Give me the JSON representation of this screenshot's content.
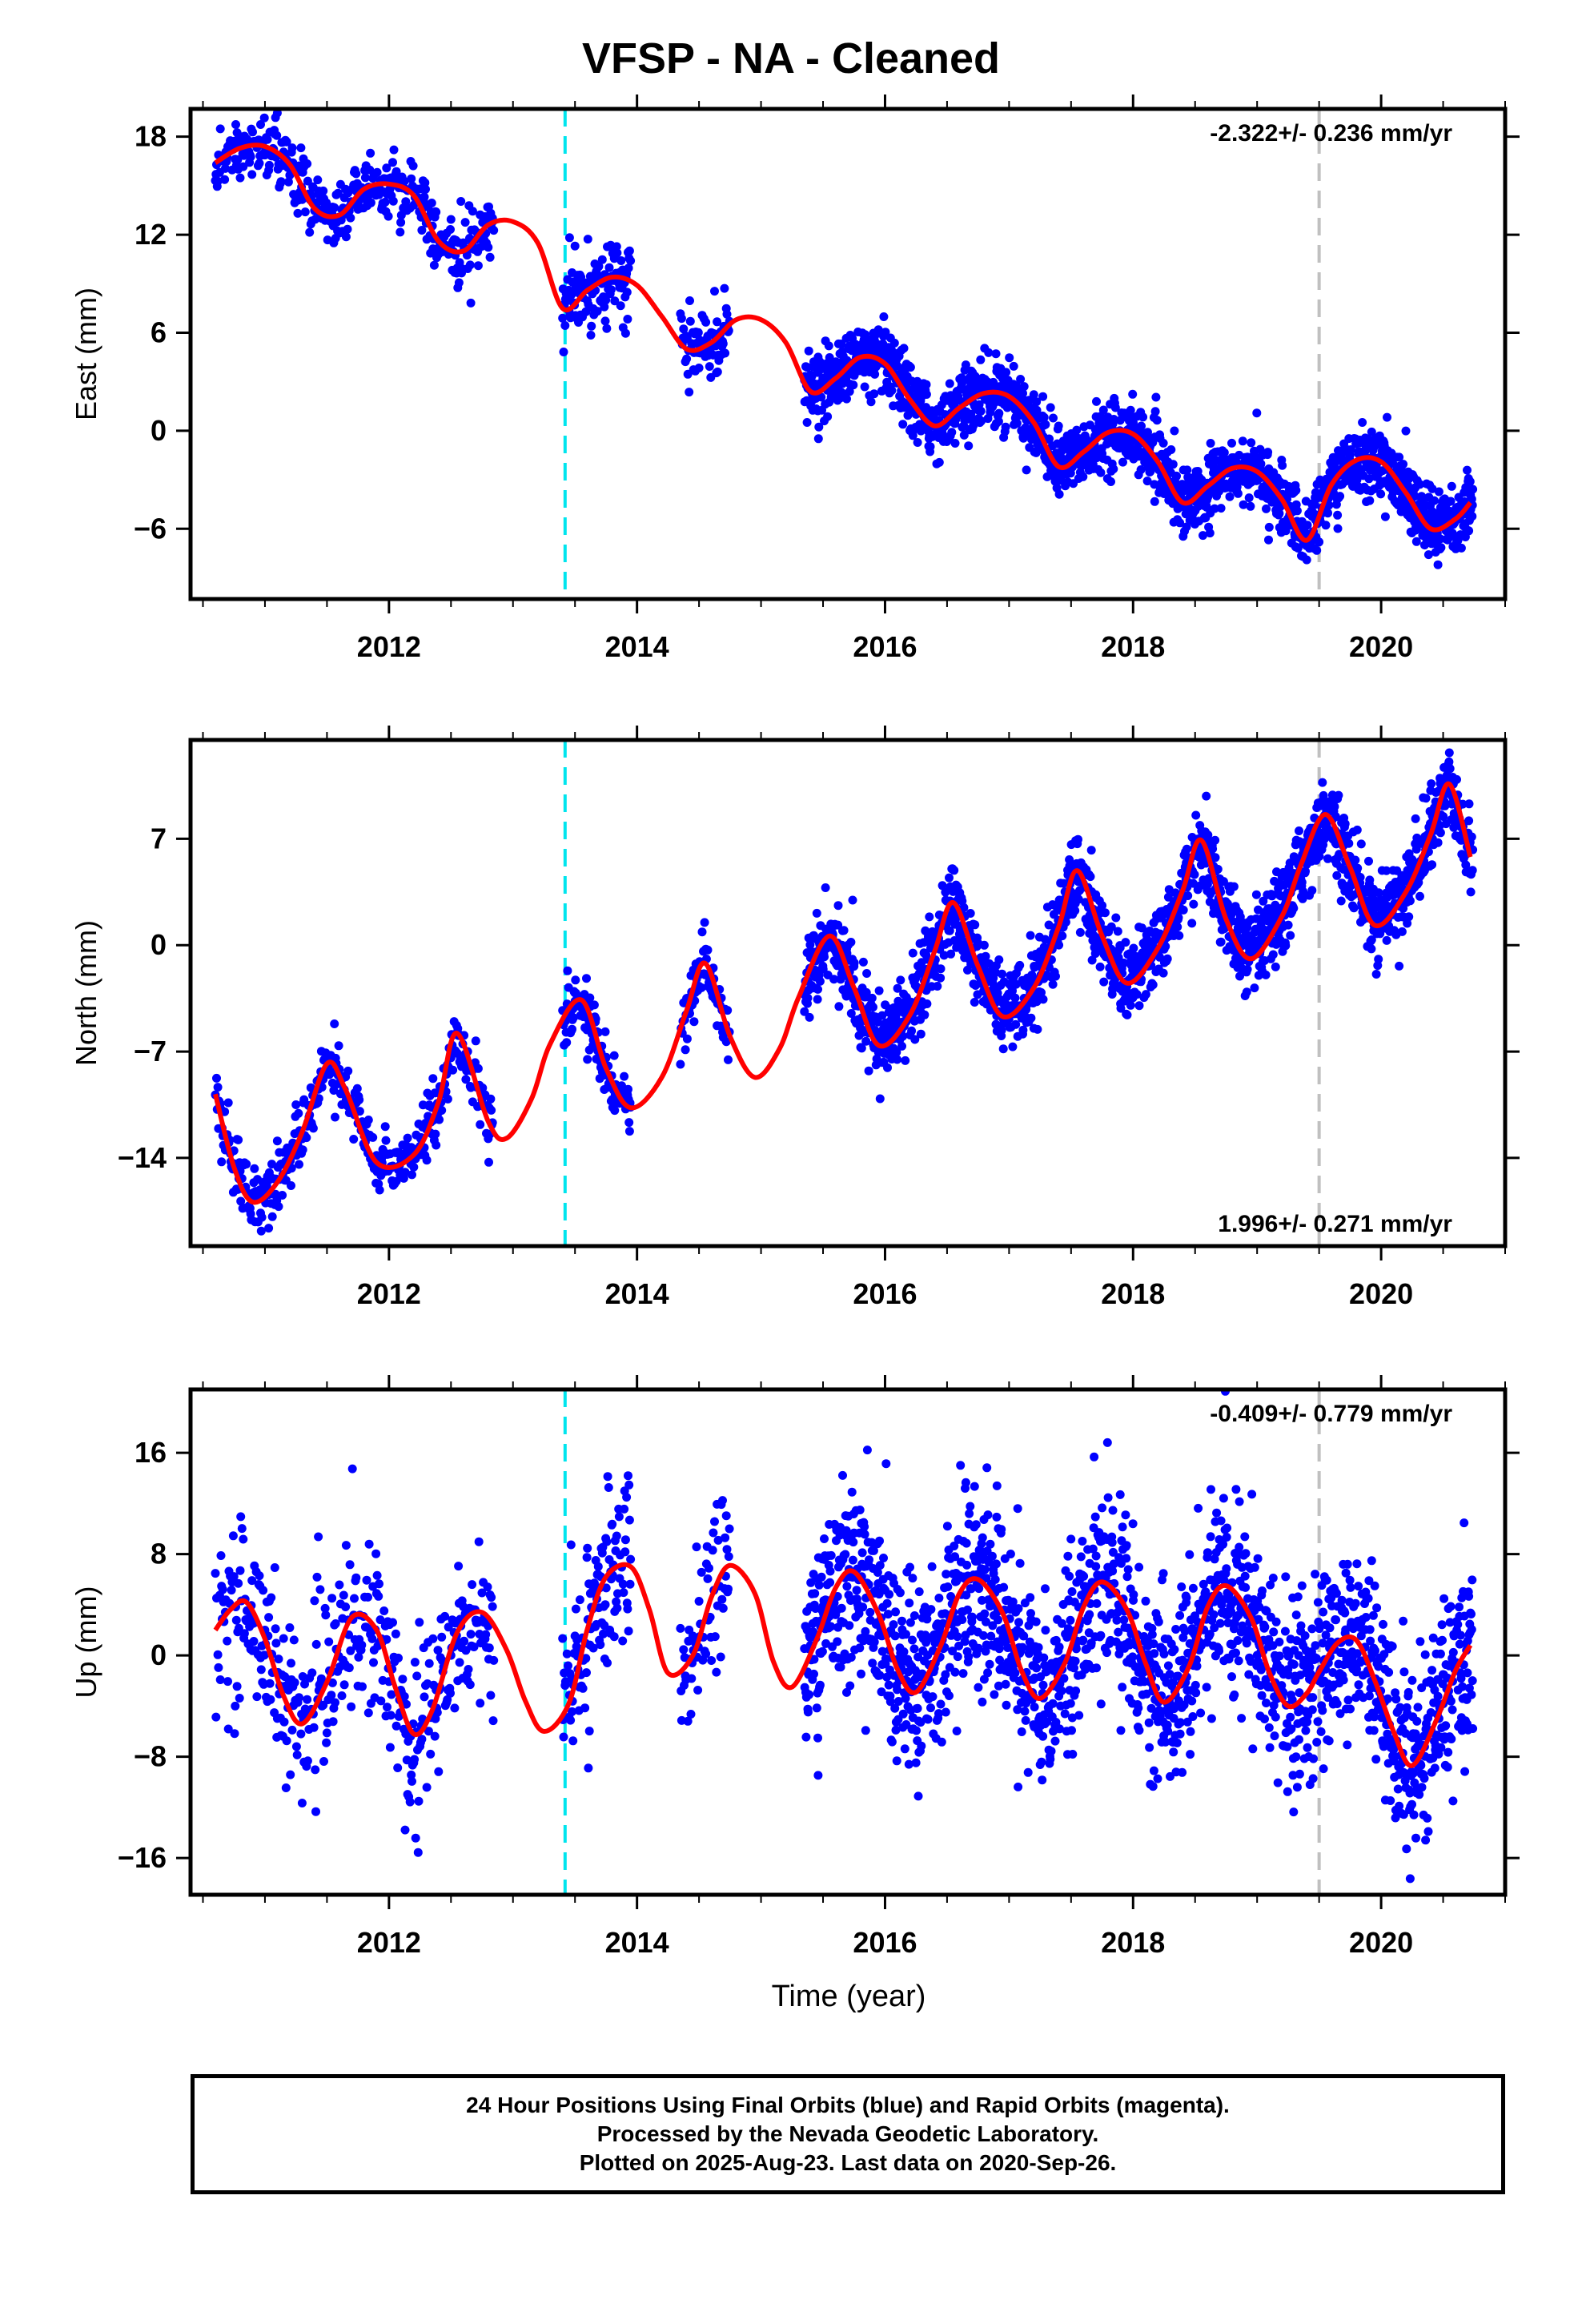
{
  "title": "VFSP  - NA - Cleaned",
  "footer": {
    "line1": "24 Hour Positions Using Final Orbits (blue) and Rapid Orbits (magenta).",
    "line2": "Processed by the Nevada Geodetic Laboratory.",
    "line3": "Plotted on 2025-Aug-23. Last data on 2020-Sep-26."
  },
  "colors": {
    "points": "#0000ff",
    "model": "#ff0000",
    "antenna_change": "#00e5ee",
    "equipment_change": "#c0c0c0"
  },
  "xlabel": "Time (year)",
  "chart_data": [
    {
      "type": "scatter",
      "component": "East",
      "ylabel": "East (mm)",
      "rate_text": "-2.322+/- 0.236 mm/yr",
      "xlim": [
        2010.4,
        2021.0
      ],
      "ylim": [
        -10.3,
        19.7
      ],
      "xticks": [
        2012,
        2014,
        2016,
        2018,
        2020
      ],
      "yticks": [
        -6,
        0,
        6,
        12,
        18
      ],
      "vlines": [
        {
          "x": 2013.42,
          "style": "antenna_change"
        },
        {
          "x": 2019.5,
          "style": "equipment_change"
        }
      ],
      "model_x": [
        2010.6,
        2010.8,
        2011.0,
        2011.2,
        2011.4,
        2011.6,
        2011.8,
        2012.0,
        2012.2,
        2012.4,
        2012.6,
        2012.8,
        2013.0,
        2013.2,
        2013.4,
        2013.6,
        2013.8,
        2014.0,
        2014.2,
        2014.4,
        2014.6,
        2014.8,
        2015.0,
        2015.2,
        2015.4,
        2015.6,
        2015.8,
        2016.0,
        2016.2,
        2016.4,
        2016.6,
        2016.8,
        2017.0,
        2017.2,
        2017.4,
        2017.6,
        2017.8,
        2018.0,
        2018.2,
        2018.4,
        2018.6,
        2018.8,
        2019.0,
        2019.2,
        2019.4,
        2019.6,
        2019.8,
        2020.0,
        2020.2,
        2020.4,
        2020.6,
        2020.72
      ],
      "model_y": [
        16.4,
        17.3,
        17.4,
        16.3,
        13.6,
        13.2,
        14.8,
        15.1,
        14.4,
        11.6,
        11.0,
        12.6,
        12.8,
        11.5,
        7.5,
        8.6,
        9.4,
        8.9,
        7.0,
        5.0,
        5.4,
        6.8,
        6.8,
        5.4,
        2.4,
        3.2,
        4.5,
        4.1,
        1.9,
        0.3,
        1.4,
        2.3,
        2.1,
        0.5,
        -2.2,
        -1.3,
        -0.1,
        -0.2,
        -1.9,
        -4.4,
        -3.4,
        -2.3,
        -2.5,
        -4.2,
        -6.7,
        -3.3,
        -1.8,
        -1.9,
        -3.8,
        -6.0,
        -5.4,
        -4.4
      ],
      "segments": [
        {
          "start": 2010.6,
          "end": 2012.85,
          "slope": -1.8,
          "base": 16.6,
          "amp": 1.3,
          "noise": 1.0,
          "step": 0.005
        },
        {
          "start": 2013.4,
          "end": 2013.95,
          "slope": -2.0,
          "base": 8.0,
          "amp": 1.0,
          "noise": 1.2,
          "step": 0.004
        },
        {
          "start": 2014.35,
          "end": 2014.75,
          "slope": -2.0,
          "base": 5.6,
          "amp": 1.0,
          "noise": 1.0,
          "step": 0.005
        },
        {
          "start": 2015.35,
          "end": 2020.74,
          "slope": -2.3,
          "base": 3.4,
          "amp": 1.3,
          "noise": 1.0,
          "step": 0.0027
        }
      ]
    },
    {
      "type": "scatter",
      "component": "North",
      "ylabel": "North (mm)",
      "rate_text": "1.996+/- 0.271 mm/yr",
      "xlim": [
        2010.4,
        2021.0
      ],
      "ylim": [
        -19.8,
        13.5
      ],
      "xticks": [
        2012,
        2014,
        2016,
        2018,
        2020
      ],
      "yticks": [
        -14,
        -7,
        0,
        7
      ],
      "vlines": [
        {
          "x": 2013.42,
          "style": "antenna_change"
        },
        {
          "x": 2019.5,
          "style": "equipment_change"
        }
      ],
      "model_x": [
        2010.6,
        2010.75,
        2010.9,
        2011.1,
        2011.3,
        2011.5,
        2011.65,
        2011.9,
        2012.2,
        2012.4,
        2012.55,
        2012.8,
        2012.95,
        2013.15,
        2013.3,
        2013.55,
        2013.75,
        2013.95,
        2014.2,
        2014.4,
        2014.55,
        2014.75,
        2014.95,
        2015.15,
        2015.3,
        2015.55,
        2015.75,
        2015.95,
        2016.2,
        2016.4,
        2016.55,
        2016.75,
        2016.95,
        2017.2,
        2017.4,
        2017.55,
        2017.75,
        2017.95,
        2018.2,
        2018.4,
        2018.55,
        2018.75,
        2018.95,
        2019.2,
        2019.35,
        2019.55,
        2019.75,
        2019.95,
        2020.2,
        2020.4,
        2020.55,
        2020.72
      ],
      "model_y": [
        -9.8,
        -14.6,
        -16.9,
        -15.6,
        -12.3,
        -7.8,
        -9.5,
        -14.3,
        -13.8,
        -10.3,
        -5.8,
        -11.6,
        -12.7,
        -10.1,
        -6.5,
        -3.6,
        -8.1,
        -10.7,
        -8.7,
        -4.3,
        -1.2,
        -6.0,
        -8.7,
        -6.8,
        -3.5,
        0.6,
        -2.8,
        -6.6,
        -4.6,
        -0.4,
        2.8,
        -1.4,
        -4.7,
        -2.8,
        1.2,
        4.9,
        0.6,
        -2.5,
        -0.2,
        3.6,
        6.9,
        1.7,
        -0.9,
        1.9,
        5.2,
        8.6,
        5.1,
        1.3,
        3.5,
        7.3,
        10.6,
        5.8
      ],
      "segments": [
        {
          "start": 2010.6,
          "end": 2012.85,
          "slope": 2.0,
          "base": -12.8,
          "amp": 3.8,
          "noise": 1.0,
          "step": 0.005
        },
        {
          "start": 2013.4,
          "end": 2013.95,
          "slope": 2.0,
          "base": -8.0,
          "amp": 3.5,
          "noise": 1.0,
          "step": 0.004
        },
        {
          "start": 2014.35,
          "end": 2014.75,
          "slope": 2.0,
          "base": -4.8,
          "amp": 3.5,
          "noise": 1.0,
          "step": 0.005
        },
        {
          "start": 2015.35,
          "end": 2020.74,
          "slope": 2.0,
          "base": -3.0,
          "amp": 4.3,
          "noise": 1.3,
          "step": 0.0027
        }
      ]
    },
    {
      "type": "scatter",
      "component": "Up",
      "ylabel": "Up (mm)",
      "rate_text": "-0.409+/- 0.779 mm/yr",
      "xlim": [
        2010.4,
        2021.0
      ],
      "ylim": [
        -18.9,
        21.0
      ],
      "xticks": [
        2012,
        2014,
        2016,
        2018,
        2020
      ],
      "yticks": [
        -16,
        -8,
        0,
        8,
        16
      ],
      "vlines": [
        {
          "x": 2013.42,
          "style": "antenna_change"
        },
        {
          "x": 2019.5,
          "style": "equipment_change"
        }
      ],
      "model_x": [
        2010.6,
        2010.72,
        2010.85,
        2011.0,
        2011.15,
        2011.3,
        2011.5,
        2011.7,
        2011.9,
        2012.05,
        2012.2,
        2012.35,
        2012.55,
        2012.75,
        2012.95,
        2013.1,
        2013.25,
        2013.45,
        2013.6,
        2013.75,
        2013.95,
        2014.1,
        2014.25,
        2014.45,
        2014.6,
        2014.75,
        2014.95,
        2015.1,
        2015.25,
        2015.45,
        2015.6,
        2015.75,
        2015.95,
        2016.1,
        2016.25,
        2016.45,
        2016.6,
        2016.75,
        2016.95,
        2017.1,
        2017.25,
        2017.45,
        2017.6,
        2017.75,
        2017.95,
        2018.1,
        2018.25,
        2018.45,
        2018.6,
        2018.75,
        2018.95,
        2019.1,
        2019.25,
        2019.4,
        2019.5,
        2019.65,
        2019.8,
        2019.95,
        2020.1,
        2020.25,
        2020.45,
        2020.6,
        2020.72
      ],
      "model_y": [
        2.0,
        3.6,
        4.2,
        1.3,
        -3.2,
        -5.4,
        -2.1,
        3.0,
        2.0,
        -2.5,
        -6.2,
        -4.3,
        1.8,
        3.4,
        0.4,
        -3.6,
        -6.0,
        -3.8,
        2.1,
        6.2,
        7.0,
        3.6,
        -1.4,
        0.0,
        4.6,
        7.1,
        4.9,
        -0.5,
        -2.5,
        1.3,
        5.3,
        6.6,
        3.2,
        -1.1,
        -2.9,
        0.8,
        4.9,
        6.0,
        3.3,
        -1.2,
        -3.4,
        -0.6,
        3.8,
        5.8,
        3.6,
        -0.6,
        -3.7,
        -0.9,
        3.8,
        5.5,
        3.0,
        -1.4,
        -4.0,
        -3.0,
        -1.3,
        1.0,
        1.2,
        -2.0,
        -6.0,
        -8.7,
        -5.0,
        -1.2,
        0.8
      ],
      "segments": [
        {
          "start": 2010.6,
          "end": 2012.85,
          "slope": 0.0,
          "base": 0.0,
          "amp": 4.2,
          "noise": 3.3,
          "step": 0.005
        },
        {
          "start": 2013.4,
          "end": 2013.95,
          "slope": 0.0,
          "base": 1.5,
          "amp": 4.0,
          "noise": 3.3,
          "step": 0.004
        },
        {
          "start": 2014.35,
          "end": 2014.75,
          "slope": 0.0,
          "base": 1.5,
          "amp": 4.0,
          "noise": 3.3,
          "step": 0.005
        },
        {
          "start": 2015.35,
          "end": 2020.74,
          "slope": -0.5,
          "base": 2.0,
          "amp": 4.6,
          "noise": 3.6,
          "step": 0.0027
        }
      ]
    }
  ]
}
